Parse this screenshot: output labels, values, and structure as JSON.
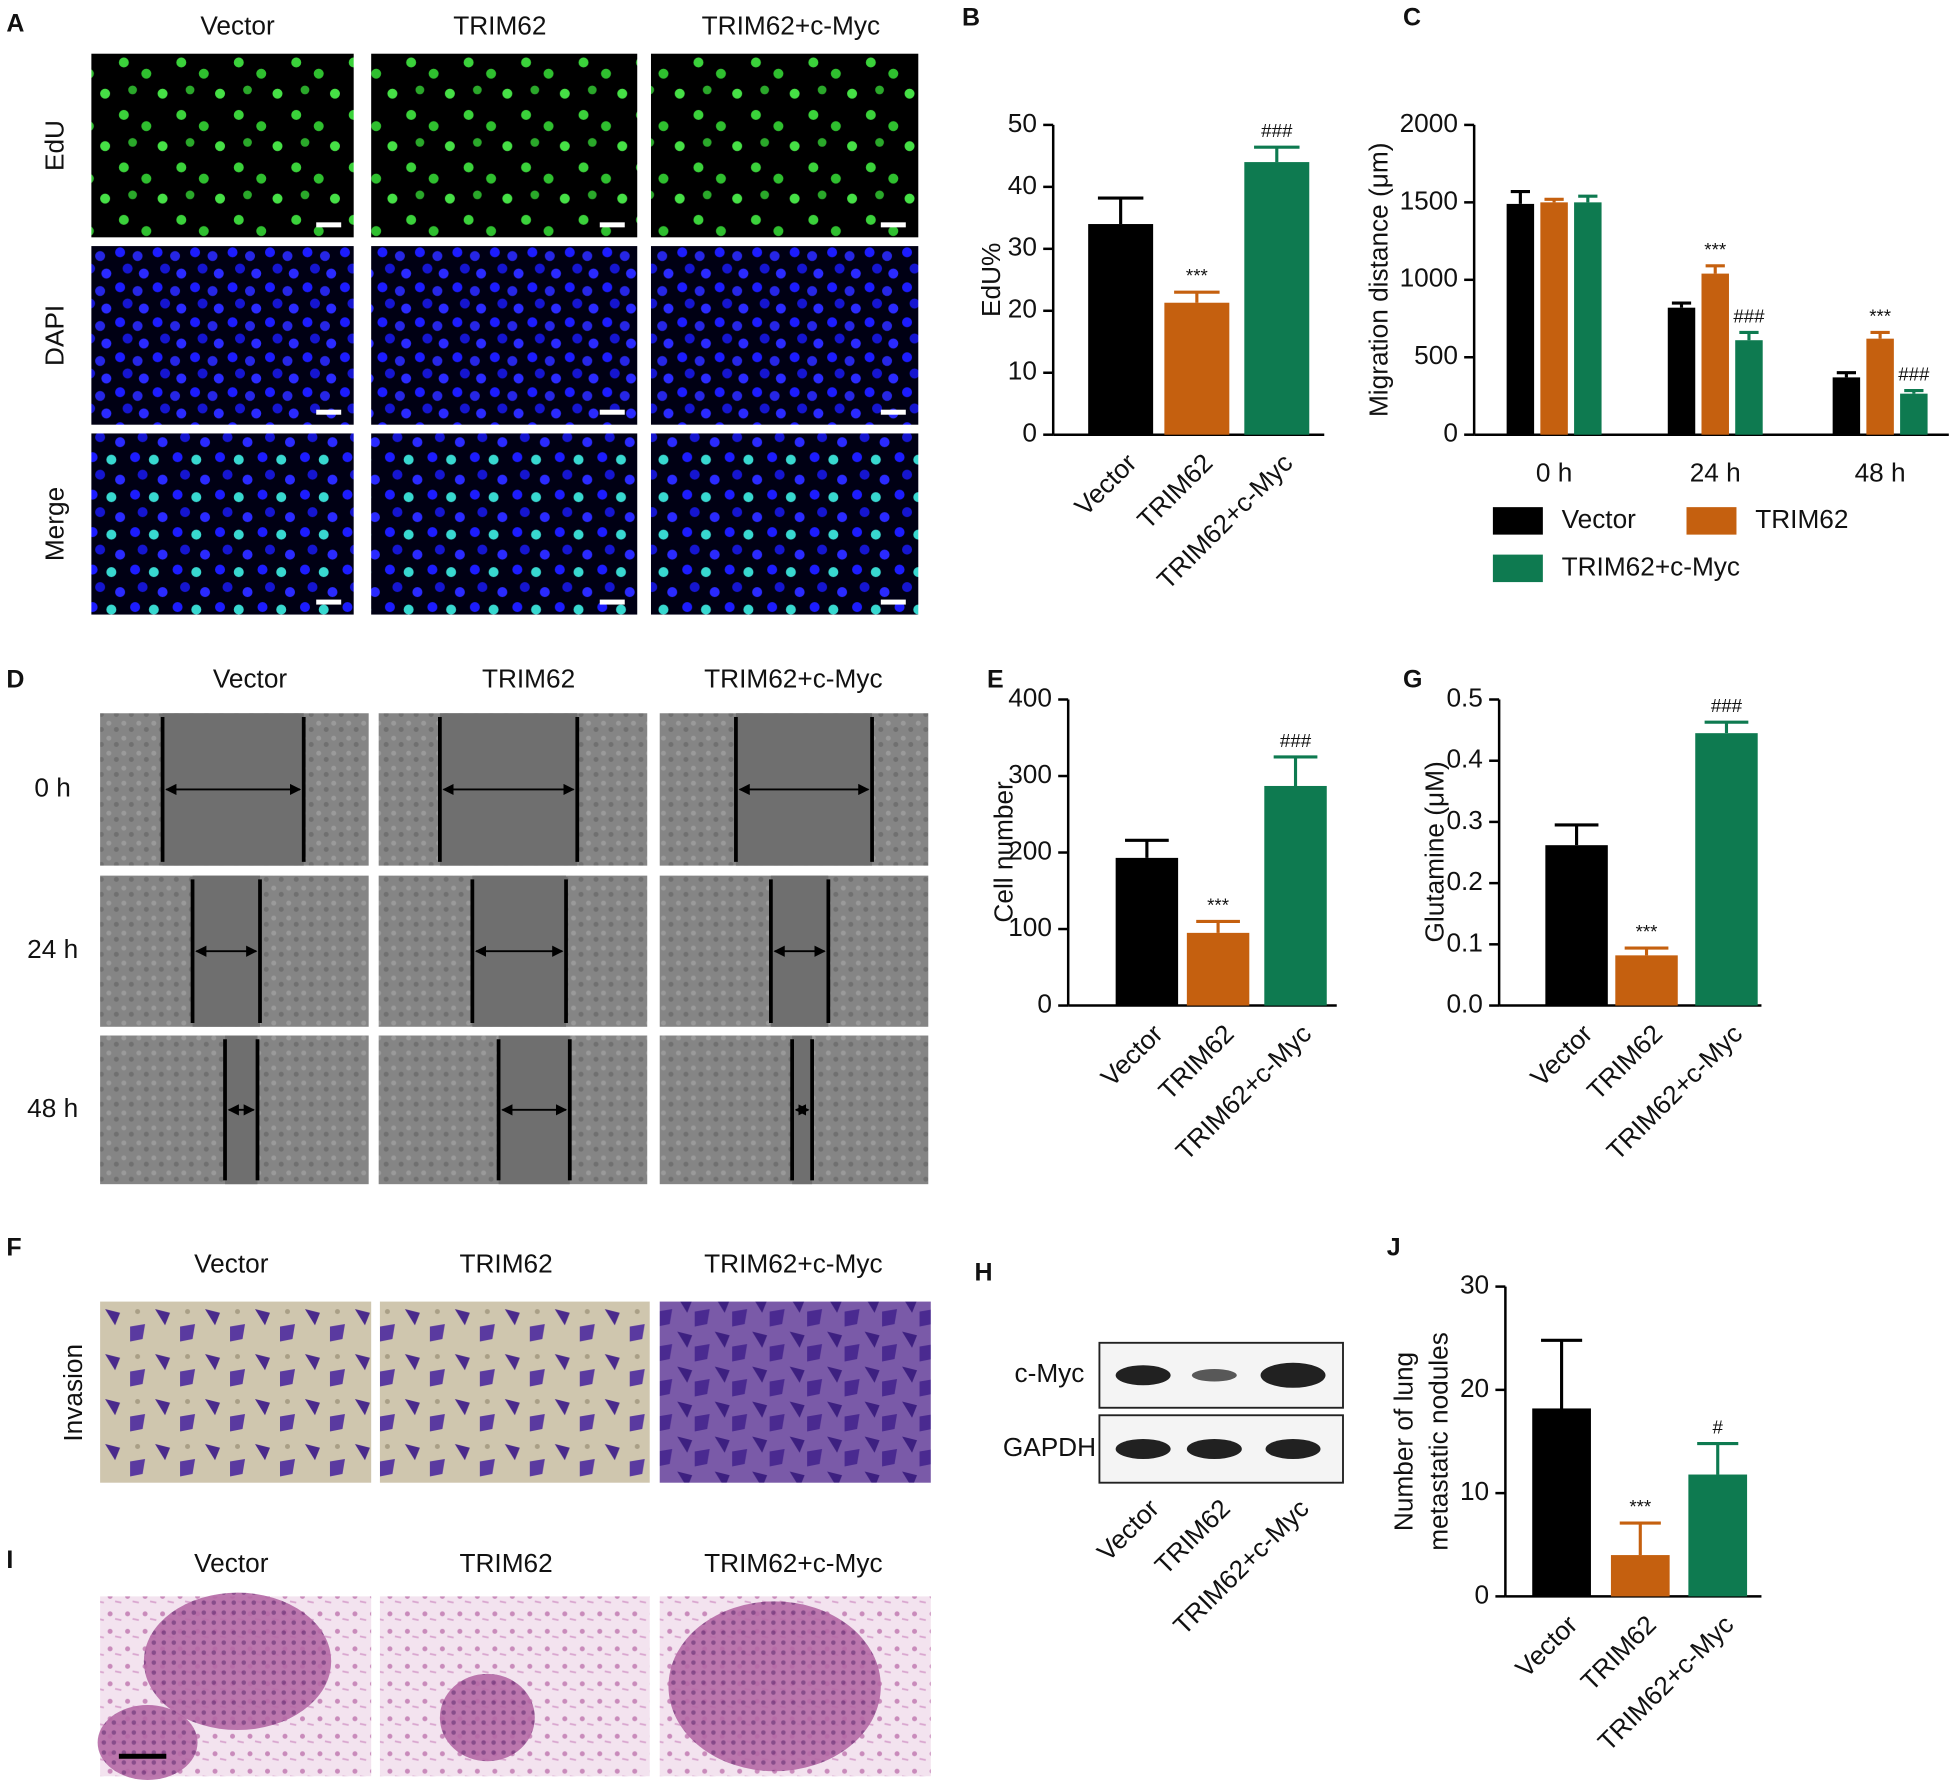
{
  "panel_letters": [
    "A",
    "B",
    "C",
    "D",
    "E",
    "F",
    "G",
    "H",
    "I",
    "J"
  ],
  "images": {
    "A": {
      "columns": [
        "Vector",
        "TRIM62",
        "TRIM62+c-Myc"
      ],
      "rows": [
        "EdU",
        "DAPI",
        "Merge"
      ]
    },
    "D": {
      "columns": [
        "Vector",
        "TRIM62",
        "TRIM62+c-Myc"
      ],
      "rows": [
        "0 h",
        "24 h",
        "48 h"
      ]
    },
    "F": {
      "columns": [
        "Vector",
        "TRIM62",
        "TRIM62+c-Myc"
      ],
      "rows": [
        "Invasion"
      ]
    },
    "H": {
      "rows": [
        "c-Myc",
        "GAPDH"
      ],
      "columns": [
        "Vector",
        "TRIM62",
        "TRIM62+c-Myc"
      ]
    },
    "I": {
      "columns": [
        "Vector",
        "TRIM62",
        "TRIM62+c-Myc"
      ]
    }
  },
  "chart_data": [
    {
      "type": "bar",
      "ylabel": "EdU%",
      "categories": [
        "Vector",
        "TRIM62",
        "TRIM62+c-Myc"
      ],
      "values": [
        34,
        21.3,
        44
      ],
      "errors": [
        4.2,
        1.7,
        2.4
      ],
      "colors": [
        "#000000",
        "#c5600f",
        "#0e7a50"
      ],
      "annotations": [
        null,
        "***",
        "###"
      ],
      "ylim": [
        0,
        50
      ],
      "yticks": [
        0,
        10,
        20,
        30,
        40,
        50
      ]
    },
    {
      "type": "bar",
      "ylabel": "Migration distance (μm)",
      "categories": [
        "0 h",
        "24 h",
        "48 h"
      ],
      "series": [
        {
          "name": "Vector",
          "color": "#000000",
          "values": [
            1490,
            820,
            370
          ],
          "errors": [
            80,
            30,
            30
          ],
          "annotations": [
            null,
            null,
            null
          ]
        },
        {
          "name": "TRIM62",
          "color": "#c5600f",
          "values": [
            1500,
            1040,
            620
          ],
          "errors": [
            20,
            50,
            40
          ],
          "annotations": [
            null,
            "***",
            "***"
          ]
        },
        {
          "name": "TRIM62+c-Myc",
          "color": "#0e7a50",
          "values": [
            1500,
            610,
            265
          ],
          "errors": [
            40,
            50,
            20
          ],
          "annotations": [
            null,
            "###",
            "###"
          ]
        }
      ],
      "ylim": [
        0,
        2000
      ],
      "yticks": [
        0,
        500,
        1000,
        1500,
        2000
      ]
    },
    {
      "type": "bar",
      "ylabel": "Cell number",
      "categories": [
        "Vector",
        "TRIM62",
        "TRIM62+c-Myc"
      ],
      "values": [
        193,
        95,
        287
      ],
      "errors": [
        23,
        15,
        38
      ],
      "colors": [
        "#000000",
        "#c5600f",
        "#0e7a50"
      ],
      "annotations": [
        null,
        "***",
        "###"
      ],
      "ylim": [
        0,
        400
      ],
      "yticks": [
        0,
        100,
        200,
        300,
        400
      ]
    },
    {
      "type": "bar",
      "ylabel": "Glutamine (μM)",
      "categories": [
        "Vector",
        "TRIM62",
        "TRIM62+c-Myc"
      ],
      "values": [
        0.262,
        0.082,
        0.445
      ],
      "errors": [
        0.033,
        0.012,
        0.018
      ],
      "colors": [
        "#000000",
        "#c5600f",
        "#0e7a50"
      ],
      "annotations": [
        null,
        "***",
        "###"
      ],
      "ylim": [
        0,
        0.5
      ],
      "yticks": [
        {
          "value": 0,
          "label": "0.0"
        },
        0.1,
        0.2,
        0.3,
        0.4,
        0.5
      ]
    },
    {
      "type": "bar",
      "ylabel": [
        "Number of lung",
        "metastatic nodules"
      ],
      "categories": [
        "Vector",
        "TRIM62",
        "TRIM62+c-Myc"
      ],
      "values": [
        18.2,
        4,
        11.8
      ],
      "errors": [
        6.6,
        3.1,
        3
      ],
      "colors": [
        "#000000",
        "#c5600f",
        "#0e7a50"
      ],
      "annotations": [
        null,
        "***",
        "#"
      ],
      "ylim": [
        0,
        30
      ],
      "yticks": [
        0,
        10,
        20,
        30
      ]
    }
  ]
}
